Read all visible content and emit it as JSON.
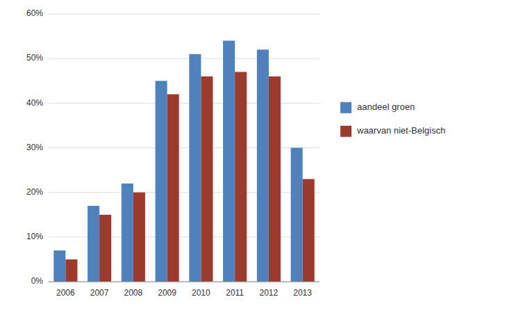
{
  "chart_data": {
    "type": "bar",
    "categories": [
      "2006",
      "2007",
      "2008",
      "2009",
      "2010",
      "2011",
      "2012",
      "2013"
    ],
    "series": [
      {
        "name": "aandeel groen",
        "color": "#4F81BD",
        "values": [
          0.07,
          0.17,
          0.22,
          0.45,
          0.51,
          0.54,
          0.52,
          0.3
        ]
      },
      {
        "name": "waarvan niet-Belgisch",
        "color": "#9C3A2E",
        "values": [
          0.05,
          0.15,
          0.2,
          0.42,
          0.46,
          0.47,
          0.46,
          0.23
        ]
      }
    ],
    "ylim": [
      0,
      0.6
    ],
    "yticks": [
      {
        "value": 0,
        "label": "0%"
      },
      {
        "value": 0.1,
        "label": "10%"
      },
      {
        "value": 0.2,
        "label": "20%"
      },
      {
        "value": 0.3,
        "label": "30%"
      },
      {
        "value": 0.4,
        "label": "40%"
      },
      {
        "value": 0.5,
        "label": "50%"
      },
      {
        "value": 0.6,
        "label": "60%"
      }
    ],
    "grid": true,
    "legend": "right"
  }
}
